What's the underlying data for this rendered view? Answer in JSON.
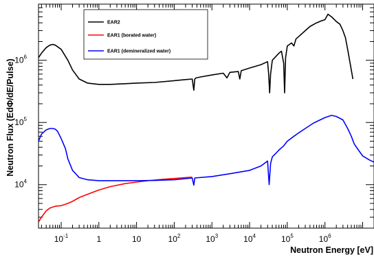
{
  "chart_data": {
    "type": "line",
    "title": "",
    "xlabel": "Neutron Energy [eV]",
    "ylabel": "Neutron Flux (EdΦ/dE/Pulse)",
    "xscale": "log",
    "yscale": "log",
    "xlim": [
      0.025,
      20000000.0
    ],
    "ylim": [
      2000,
      8000000
    ],
    "grid": false,
    "legend_position": "top-left",
    "x_ticks": [
      {
        "value": 0.1,
        "base": "10",
        "exp": "-1"
      },
      {
        "value": 1,
        "text": "1"
      },
      {
        "value": 10,
        "text": "10"
      },
      {
        "value": 100,
        "base": "10",
        "exp": "2"
      },
      {
        "value": 1000,
        "base": "10",
        "exp": "3"
      },
      {
        "value": 10000,
        "base": "10",
        "exp": "4"
      },
      {
        "value": 100000,
        "base": "10",
        "exp": "5"
      },
      {
        "value": 1000000,
        "base": "10",
        "exp": "6"
      }
    ],
    "y_ticks": [
      {
        "value": 10000,
        "base": "10",
        "exp": "4"
      },
      {
        "value": 100000,
        "base": "10",
        "exp": "5"
      },
      {
        "value": 1000000,
        "base": "10",
        "exp": "6"
      }
    ],
    "series": [
      {
        "name": "EAR2",
        "color": "#000000",
        "x": [
          0.025,
          0.03,
          0.04,
          0.05,
          0.06,
          0.07,
          0.1,
          0.15,
          0.2,
          0.3,
          0.5,
          1,
          2,
          5,
          10,
          30,
          100,
          200,
          300,
          330,
          350,
          380,
          500,
          1000,
          2000,
          2500,
          3000,
          5000,
          5500,
          6000,
          10000,
          20000,
          30000,
          32000,
          34000,
          36000,
          40000,
          60000,
          70000,
          80000,
          85000,
          90000,
          100000,
          130000,
          150000,
          170000,
          200000,
          300000,
          400000,
          600000,
          800000,
          1000000,
          1200000,
          1500000,
          2000000,
          2500000,
          3000000,
          3500000,
          4000000,
          4500000,
          5000000,
          5500000
        ],
        "y": [
          1100000,
          1300000,
          1600000,
          1750000,
          1800000,
          1750000,
          1500000,
          1000000,
          700000,
          500000,
          430000,
          410000,
          410000,
          420000,
          430000,
          440000,
          470000,
          490000,
          500000,
          330000,
          500000,
          520000,
          540000,
          580000,
          620000,
          520000,
          640000,
          660000,
          500000,
          680000,
          750000,
          850000,
          950000,
          600000,
          300000,
          600000,
          1000000,
          1300000,
          1400000,
          900000,
          300000,
          1100000,
          1700000,
          1900000,
          1700000,
          2200000,
          2400000,
          3000000,
          3500000,
          4000000,
          4300000,
          4500000,
          5500000,
          5000000,
          4200000,
          3800000,
          3000000,
          2300000,
          1500000,
          1000000,
          700000,
          500000
        ]
      },
      {
        "name": "EAR1 (borated water)",
        "color": "#ff0000",
        "x": [
          0.025,
          0.03,
          0.04,
          0.05,
          0.07,
          0.1,
          0.15,
          0.2,
          0.3,
          0.5,
          1,
          2,
          5,
          10,
          20,
          50,
          100,
          200,
          300
        ],
        "y": [
          2500,
          3000,
          3800,
          4200,
          4500,
          4600,
          5000,
          5400,
          6200,
          7000,
          8200,
          9300,
          10400,
          11000,
          11600,
          12200,
          12600,
          13000,
          13200
        ]
      },
      {
        "name": "EAR1 (demineralized water)",
        "color": "#0000ff",
        "x": [
          0.025,
          0.03,
          0.04,
          0.05,
          0.06,
          0.07,
          0.08,
          0.1,
          0.13,
          0.15,
          0.2,
          0.3,
          0.5,
          1,
          3,
          10,
          30,
          100,
          300,
          330,
          350,
          1000,
          3000,
          10000,
          20000,
          30000,
          33000,
          36000,
          40000,
          50000,
          60000,
          80000,
          100000,
          150000,
          200000,
          300000,
          500000,
          1000000,
          1500000,
          2000000,
          3000000,
          4000000,
          5000000,
          6000000,
          8000000,
          10000000,
          15000000,
          20000000
        ],
        "y": [
          50000,
          65000,
          76000,
          80000,
          80000,
          78000,
          72000,
          55000,
          38000,
          26000,
          17000,
          13000,
          12000,
          11600,
          11600,
          11600,
          11700,
          12000,
          12800,
          9800,
          12800,
          13500,
          15000,
          17000,
          20000,
          24000,
          10000,
          22000,
          28000,
          32000,
          36000,
          42000,
          50000,
          60000,
          68000,
          80000,
          98000,
          120000,
          130000,
          125000,
          110000,
          80000,
          60000,
          45000,
          35000,
          29000,
          25000,
          23000
        ]
      }
    ]
  }
}
